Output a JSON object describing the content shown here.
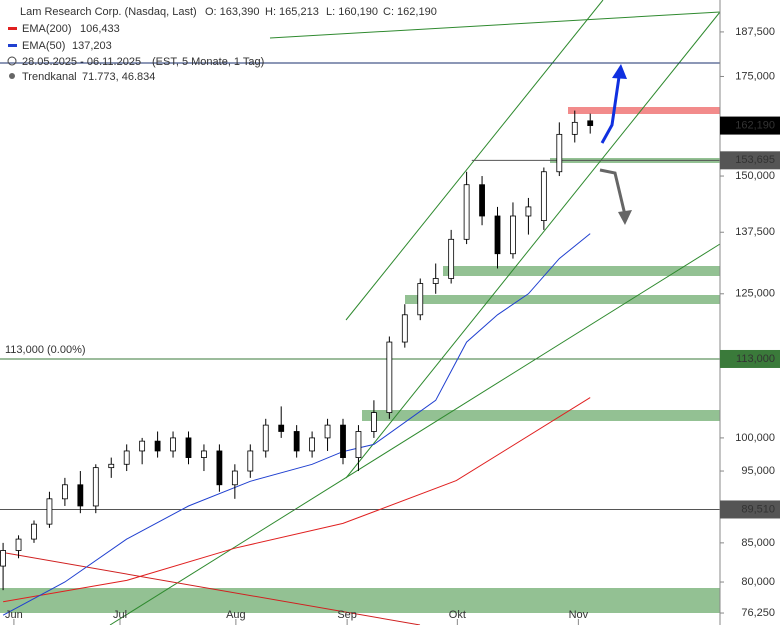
{
  "chart_data": {
    "type": "candlestick",
    "title": "Lam Research Corp. (Nasdaq, Last)",
    "ohlc": [
      "O: 163,390",
      "H: 165,213",
      "L: 160,190",
      "C: 162,190"
    ],
    "period": "28.05.2025 - 06.11.2025",
    "period_note": "(EST, 5 Monate, 1 Tag)",
    "indicator": {
      "name": "Trendkanal",
      "label": "71.773, 46.834"
    },
    "log_scale": true,
    "ylim": [
      74.85,
      197.0
    ],
    "yticks": [
      {
        "value": 187.5,
        "label": "187,500"
      },
      {
        "value": 175,
        "label": "175,000"
      },
      {
        "value": 150,
        "label": "150,000"
      },
      {
        "value": 137.5,
        "label": "137,500"
      },
      {
        "value": 125,
        "label": "125,000"
      },
      {
        "value": 100,
        "label": "100,000"
      },
      {
        "value": 95,
        "label": "95,000"
      },
      {
        "value": 85,
        "label": "85,000"
      },
      {
        "value": 80,
        "label": "80,000"
      },
      {
        "value": 76.25,
        "label": "76,250"
      }
    ],
    "xlim": [
      -0.6,
      139.2
    ],
    "xticks": [
      {
        "value": 2.1,
        "label": "Jun"
      },
      {
        "value": 22.7,
        "label": "Jul"
      },
      {
        "value": 45.2,
        "label": "Aug"
      },
      {
        "value": 66.8,
        "label": "Sep"
      },
      {
        "value": 88.2,
        "label": "Okt"
      },
      {
        "value": 111.7,
        "label": "Nov"
      }
    ],
    "candles": {
      "x": [
        0,
        3,
        6,
        9,
        12,
        15,
        18,
        21,
        24,
        27,
        30,
        33,
        36,
        39,
        42,
        45,
        48,
        51,
        54,
        57,
        60,
        63,
        66,
        69,
        72,
        75,
        78,
        81,
        84,
        87,
        90,
        93,
        96,
        99,
        102,
        105,
        108,
        111,
        114
      ],
      "open": [
        82,
        84,
        85.5,
        87.5,
        91,
        93,
        90,
        95.5,
        96,
        98,
        99.5,
        98,
        100,
        97,
        98,
        93,
        95,
        98,
        102,
        101,
        98,
        100,
        102,
        97,
        101,
        104,
        116,
        121,
        127,
        128,
        136,
        148,
        141,
        133,
        141,
        140,
        151,
        160,
        163.39
      ],
      "high": [
        85,
        86,
        88,
        92,
        94,
        95,
        96,
        97,
        99,
        100,
        101,
        101,
        101,
        99,
        99,
        96,
        99,
        103,
        105,
        102,
        101,
        103,
        103,
        102,
        106,
        117,
        123,
        128,
        131,
        138,
        151,
        150,
        143,
        144,
        145,
        152,
        163,
        166,
        165.213
      ],
      "low": [
        79,
        83,
        85,
        87,
        90,
        89,
        89,
        94,
        95,
        96,
        97,
        97,
        96,
        95,
        92,
        91,
        94,
        97,
        100,
        97,
        97,
        98,
        96,
        95,
        100,
        103,
        115,
        120,
        125,
        127,
        135,
        139,
        130,
        132,
        137,
        138,
        150,
        158,
        160.19
      ],
      "close": [
        84,
        85.5,
        87.5,
        91,
        93,
        90,
        95.5,
        96,
        98,
        99.5,
        98,
        100,
        97,
        98,
        93,
        95,
        98,
        102,
        101,
        98,
        100,
        102,
        97,
        101,
        104,
        116,
        121,
        127,
        128,
        136,
        148,
        141,
        133,
        141,
        143,
        151,
        160,
        163,
        162.19
      ]
    },
    "series": [
      {
        "name": "EMA(200)",
        "label": "106,433",
        "color": "#e02020",
        "x": [
          0,
          24,
          45,
          66,
          88,
          114
        ],
        "values": [
          77.6,
          80.2,
          84.3,
          87.6,
          93.6,
          106.433
        ]
      },
      {
        "name": "EMA(50)",
        "label": "137,203",
        "color": "#2040d0",
        "x": [
          0,
          12,
          24,
          36,
          48,
          60,
          66,
          72,
          84,
          90,
          96,
          102,
          108,
          114
        ],
        "values": [
          76,
          80,
          85.5,
          90,
          93.5,
          96,
          97.9,
          99,
          106,
          116,
          121,
          125,
          132,
          137.203
        ]
      }
    ],
    "levels": [
      {
        "value": 162.19,
        "label": "162,190",
        "color": "#000000"
      },
      {
        "value": 153.695,
        "label": "153,695",
        "color": "#555555",
        "x_start": 91
      },
      {
        "value": 113,
        "label": "113,000",
        "color": "#3a7a3a",
        "note": "113,000 (0.00%)"
      },
      {
        "value": 89.51,
        "label": "89,510",
        "color": "#555555"
      },
      {
        "value": 178.7,
        "color": "#1a2f6e"
      }
    ]
  }
}
